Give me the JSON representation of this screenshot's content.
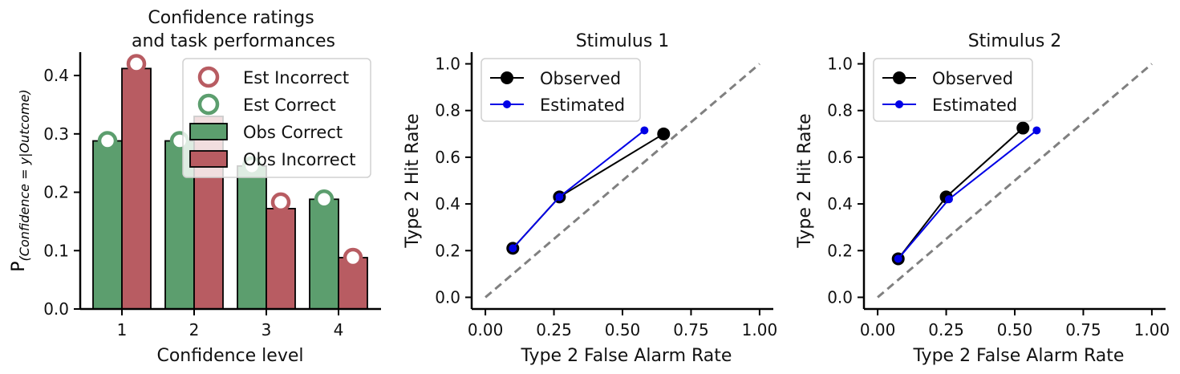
{
  "colors": {
    "green": "#5c9e6e",
    "red": "#b85c62",
    "observed": "#000000",
    "estimated": "#0000e6",
    "diagonal": "#808080"
  },
  "chart_data": [
    {
      "type": "bar",
      "title": "Confidence ratings\nand task performances",
      "xlabel": "Confidence level",
      "ylabel": "P(Confidence = y|Outcome)",
      "ylim": [
        0,
        0.44
      ],
      "categories": [
        "1",
        "2",
        "3",
        "4"
      ],
      "yticks": [
        "0.0",
        "0.1",
        "0.2",
        "0.3",
        "0.4"
      ],
      "series": [
        {
          "name": "Obs Correct",
          "values": [
            0.288,
            0.288,
            0.245,
            0.188
          ],
          "color": "#5c9e6e"
        },
        {
          "name": "Obs Incorrect",
          "values": [
            0.412,
            0.33,
            0.172,
            0.088
          ],
          "color": "#b85c62"
        }
      ],
      "markers": [
        {
          "name": "Est Incorrect",
          "values": [
            0.42,
            0.3,
            0.183,
            0.088
          ],
          "color": "#b85c62"
        },
        {
          "name": "Est Correct",
          "values": [
            0.288,
            0.288,
            0.245,
            0.188
          ],
          "color": "#5c9e6e"
        }
      ],
      "legend": [
        "Est Incorrect",
        "Est Correct",
        "Obs Correct",
        "Obs Incorrect"
      ],
      "legend_position": "top-right"
    },
    {
      "type": "line",
      "title": "Stimulus 1",
      "xlabel": "Type 2 False Alarm Rate",
      "ylabel": "Type 2 Hit Rate",
      "xlim": [
        -0.05,
        1.05
      ],
      "ylim": [
        -0.05,
        1.05
      ],
      "xticks": [
        "0.00",
        "0.25",
        "0.50",
        "0.75",
        "1.00"
      ],
      "yticks": [
        "0.0",
        "0.2",
        "0.4",
        "0.6",
        "0.8",
        "1.0"
      ],
      "series": [
        {
          "name": "Observed",
          "x": [
            0.1,
            0.27,
            0.65
          ],
          "y": [
            0.21,
            0.43,
            0.7
          ]
        },
        {
          "name": "Estimated",
          "x": [
            0.1,
            0.27,
            0.58
          ],
          "y": [
            0.21,
            0.43,
            0.715
          ]
        }
      ],
      "legend_position": "top-left"
    },
    {
      "type": "line",
      "title": "Stimulus 2",
      "xlabel": "Type 2 False Alarm Rate",
      "ylabel": "Type 2 Hit Rate",
      "xlim": [
        -0.05,
        1.05
      ],
      "ylim": [
        -0.05,
        1.05
      ],
      "xticks": [
        "0.00",
        "0.25",
        "0.50",
        "0.75",
        "1.00"
      ],
      "yticks": [
        "0.0",
        "0.2",
        "0.4",
        "0.6",
        "0.8",
        "1.0"
      ],
      "series": [
        {
          "name": "Observed",
          "x": [
            0.075,
            0.25,
            0.53
          ],
          "y": [
            0.165,
            0.43,
            0.725
          ]
        },
        {
          "name": "Estimated",
          "x": [
            0.075,
            0.26,
            0.58
          ],
          "y": [
            0.165,
            0.42,
            0.715
          ]
        }
      ],
      "legend_position": "top-left"
    }
  ]
}
